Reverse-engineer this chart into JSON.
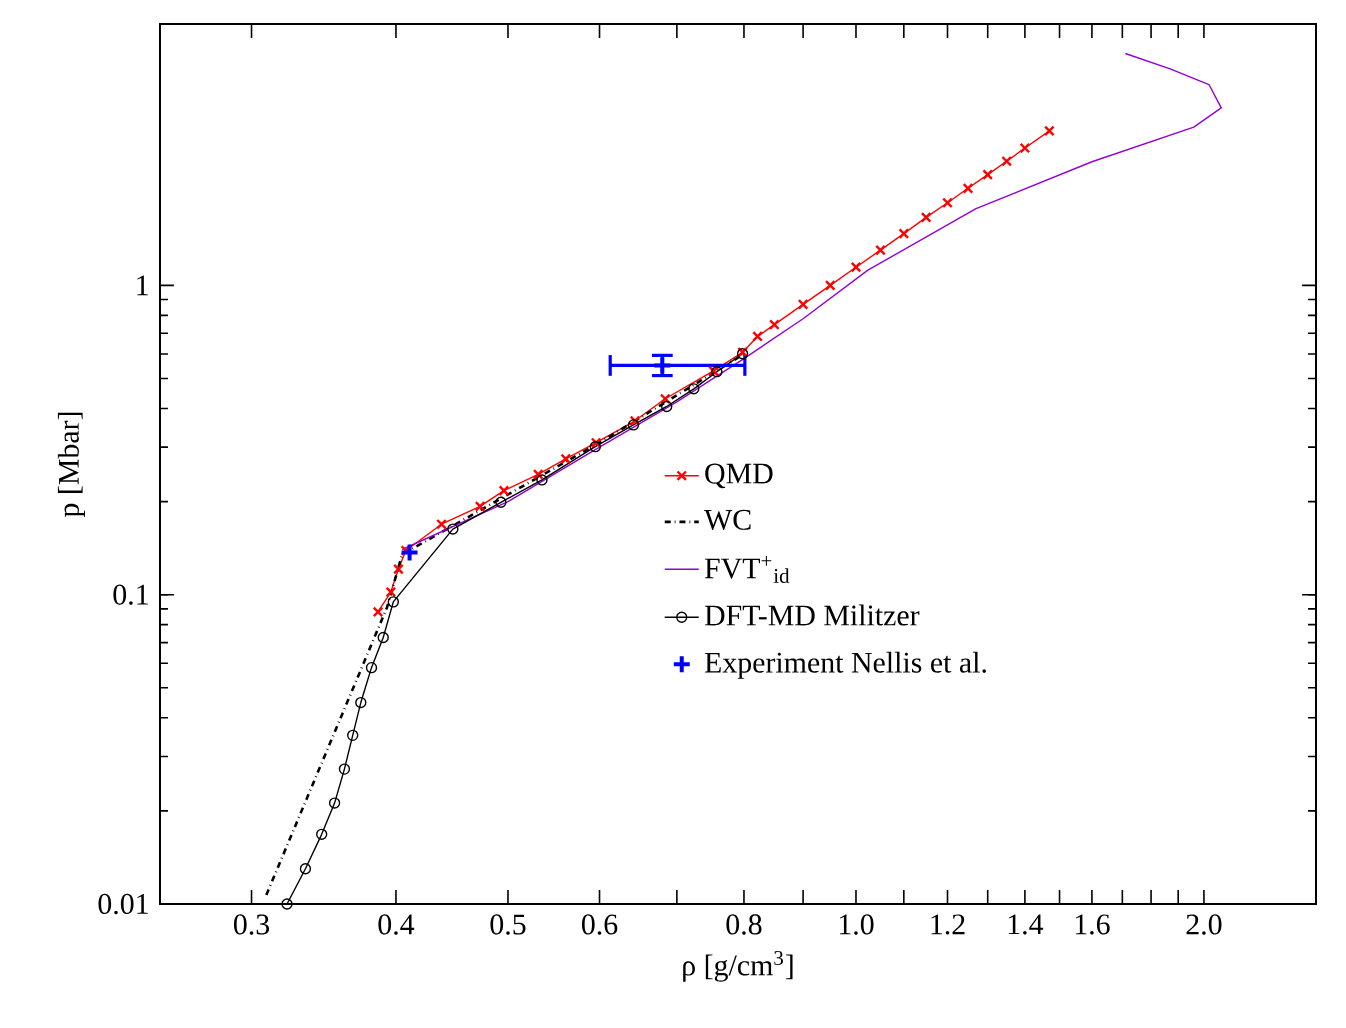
{
  "chart_data": {
    "type": "line",
    "xlabel": "ρ [g/cm$^{3}$]",
    "ylabel": "p [Mbar]",
    "log": "xy",
    "xlim": [
      0.25,
      2.5
    ],
    "ylim": [
      0.01,
      7
    ],
    "xticks": [
      0.3,
      0.4,
      0.5,
      0.6,
      {
        "value": 0.7,
        "label": null
      },
      0.8,
      {
        "value": 0.9,
        "label": null
      },
      {
        "value": 1.0,
        "label": "1.0"
      },
      {
        "value": 1.1,
        "label": null
      },
      1.2,
      {
        "value": 1.3,
        "label": null
      },
      1.4,
      {
        "value": 1.5,
        "label": null
      },
      1.6,
      {
        "value": 1.7,
        "label": null
      },
      {
        "value": 1.8,
        "label": null
      },
      {
        "value": 1.9,
        "label": null
      },
      {
        "value": 2.0,
        "label": "2.0"
      }
    ],
    "yticks": [
      0.01,
      0.1,
      1
    ],
    "legend": "right",
    "grid": false,
    "series": [
      {
        "name": "QMD",
        "color": "#ff0000",
        "marker": "cross",
        "line_style": "solid",
        "x": [
          0.386,
          0.396,
          0.402,
          0.408,
          0.438,
          0.473,
          0.496,
          0.531,
          0.561,
          0.596,
          0.644,
          0.684,
          0.753,
          0.798,
          0.822,
          0.85,
          0.9,
          0.95,
          1.0,
          1.05,
          1.1,
          1.15,
          1.2,
          1.25,
          1.3,
          1.35,
          1.4,
          1.47
        ],
        "values": [
          0.088,
          0.102,
          0.121,
          0.139,
          0.169,
          0.193,
          0.217,
          0.245,
          0.275,
          0.31,
          0.365,
          0.43,
          0.529,
          0.608,
          0.684,
          0.747,
          0.868,
          1.0,
          1.145,
          1.3,
          1.47,
          1.66,
          1.85,
          2.06,
          2.28,
          2.52,
          2.78,
          3.16
        ]
      },
      {
        "name": "WC",
        "color": "#000000",
        "marker": "none",
        "line_style": "dashdotted",
        "x": [
          0.309,
          0.393,
          0.405,
          0.6,
          0.8
        ],
        "values": [
          0.0107,
          0.091,
          0.135,
          0.31,
          0.6
        ]
      },
      {
        "name": "FVT$^{+}$$_{id}$",
        "color": "#9400d3",
        "marker": "none",
        "line_style": "solid",
        "x": [
          0.405,
          0.5,
          0.6,
          0.7,
          0.8,
          0.9,
          1.024,
          1.27,
          1.6,
          1.96,
          2.07,
          2.02,
          1.87,
          1.71
        ],
        "values": [
          0.14,
          0.2,
          0.3,
          0.42,
          0.58,
          0.78,
          1.12,
          1.77,
          2.51,
          3.25,
          3.75,
          4.46,
          5.01,
          5.62
        ]
      },
      {
        "name": "DFT-MD Militzer",
        "color": "#000000",
        "marker": "circle",
        "line_style": "solid",
        "x": [
          0.322,
          0.334,
          0.345,
          0.354,
          0.361,
          0.367,
          0.373,
          0.381,
          0.39,
          0.398,
          0.448,
          0.493,
          0.535,
          0.595,
          0.642,
          0.686,
          0.724,
          0.758,
          0.798
        ],
        "values": [
          0.01,
          0.013,
          0.0168,
          0.0212,
          0.0273,
          0.0351,
          0.0448,
          0.0581,
          0.0727,
          0.0948,
          0.163,
          0.199,
          0.235,
          0.301,
          0.354,
          0.406,
          0.463,
          0.526,
          0.601
        ]
      },
      {
        "name": "Experiment Nellis et al.",
        "type": "scatter",
        "color": "#0000ff",
        "marker": "plus",
        "x": [
          0.68,
          0.411
        ],
        "values": [
          0.551,
          0.137
        ],
        "errors": [
          [
            0.505,
            0.601
          ],
          null
        ],
        "xerrors": [
          [
            0.611,
            0.804
          ],
          null
        ]
      }
    ]
  }
}
